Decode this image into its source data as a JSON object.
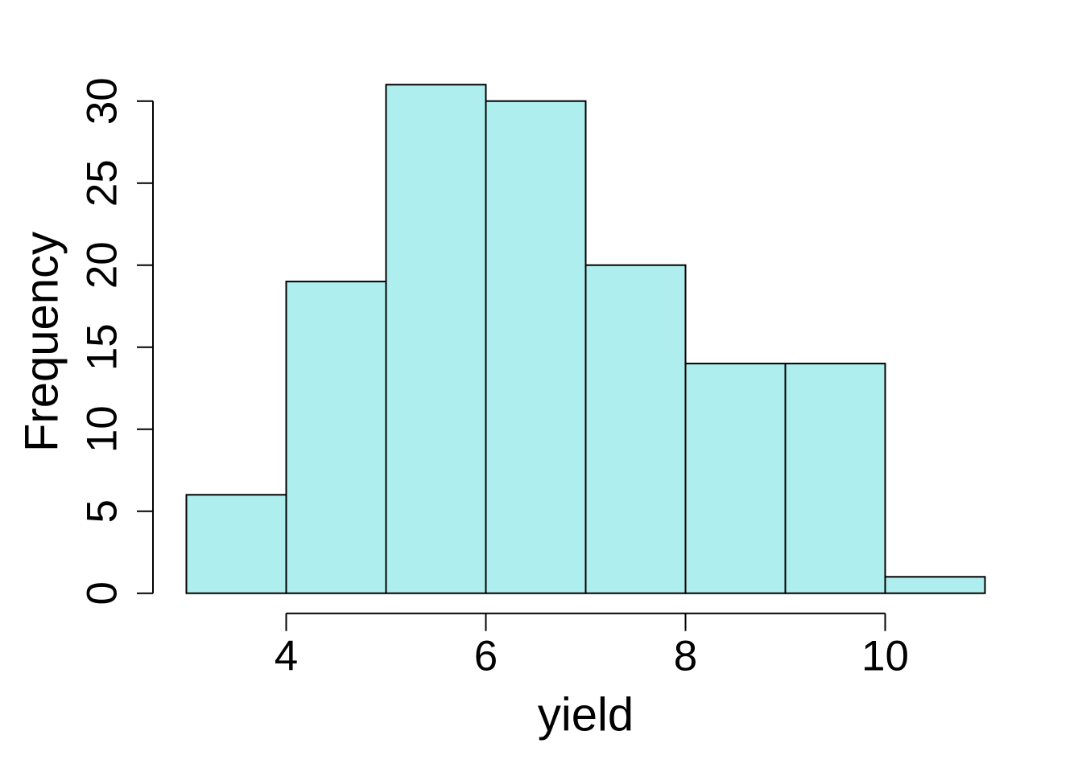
{
  "figure": {
    "background_color": "#FFFFFF"
  },
  "chart_data": {
    "type": "bar",
    "subtype": "histogram",
    "title": "",
    "xlabel": "yield",
    "ylabel": "Frequency",
    "bin_edges": [
      3,
      4,
      5,
      6,
      7,
      8,
      9,
      10,
      11
    ],
    "counts": [
      6,
      19,
      31,
      30,
      20,
      14,
      14,
      1
    ],
    "xticks": [
      4,
      6,
      8,
      10
    ],
    "yticks": [
      0,
      5,
      10,
      15,
      20,
      25,
      30
    ],
    "xlim": [
      3,
      11
    ],
    "ylim": [
      0,
      31
    ],
    "grid": false,
    "legend": false,
    "bar_fill_color": "#AFEEEE",
    "bar_border_color": "#000000",
    "axis_color": "#000000",
    "text_color": "#000000"
  }
}
